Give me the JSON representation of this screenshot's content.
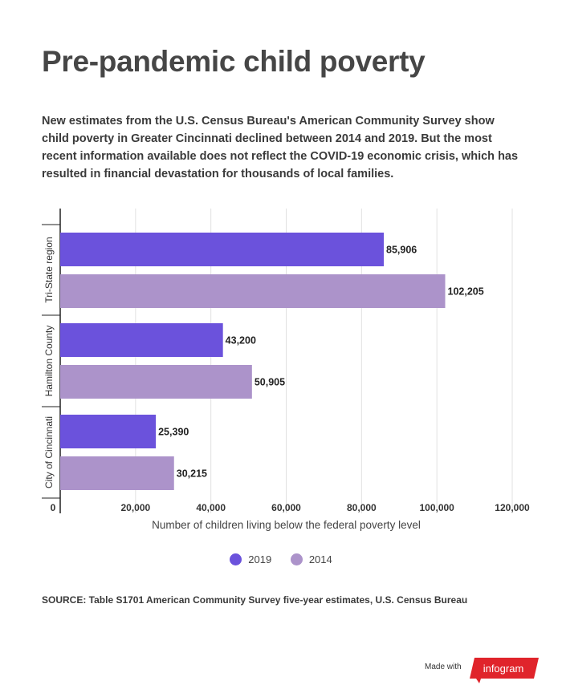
{
  "title": "Pre-pandemic child poverty",
  "description": "New estimates from the U.S. Census Bureau's American Community Survey show child poverty in Greater Cincinnati declined between 2014 and 2019. But the most recent information available does not reflect the COVID-19 economic crisis, which has resulted in financial devastation for thousands of local families.",
  "source": "SOURCE: Table S1701 American Community Survey five-year estimates, U.S. Census Bureau",
  "footer": {
    "made_with": "Made with",
    "brand": "infogram"
  },
  "colors": {
    "2019": "#6b52dc",
    "2014": "#ac93ca",
    "grid": "#e1e1e1",
    "axis": "#222222"
  },
  "chart_data": {
    "type": "bar",
    "orientation": "horizontal",
    "categories": [
      "Tri-State region",
      "Hamilton County",
      "City of Cincinnati"
    ],
    "series": [
      {
        "name": "2019",
        "values": [
          85906,
          43200,
          25390
        ]
      },
      {
        "name": "2014",
        "values": [
          102205,
          50905,
          30215
        ]
      }
    ],
    "xlabel": "Number of children living below the federal poverty level",
    "ylabel": "",
    "xlim": [
      0,
      120000
    ],
    "xticks": [
      0,
      20000,
      40000,
      60000,
      80000,
      100000,
      120000
    ],
    "xtick_labels": [
      "0",
      "20,000",
      "40,000",
      "60,000",
      "80,000",
      "100,000",
      "120,000"
    ],
    "data_labels": [
      [
        "85,906",
        "43,200",
        "25,390"
      ],
      [
        "102,205",
        "50,905",
        "30,215"
      ]
    ],
    "grid": true,
    "legend_position": "bottom"
  }
}
